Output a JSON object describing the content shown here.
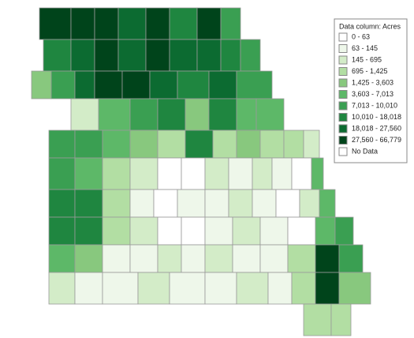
{
  "legend": {
    "title": "Data column: Acres",
    "items": [
      {
        "label": "0 - 63",
        "color": "#ffffff"
      },
      {
        "label": "63 - 145",
        "color": "#eef7ea"
      },
      {
        "label": "145 - 695",
        "color": "#d3ecc8"
      },
      {
        "label": "695 - 1,425",
        "color": "#b2dea3"
      },
      {
        "label": "1,425 - 3,603",
        "color": "#88c87e"
      },
      {
        "label": "3,603 - 7,013",
        "color": "#5db868"
      },
      {
        "label": "7,013 - 10,010",
        "color": "#3a9f52"
      },
      {
        "label": "10,010 - 18,018",
        "color": "#1f8640"
      },
      {
        "label": "18,018 - 27,560",
        "color": "#0c6b31"
      },
      {
        "label": "27,560 - 66,779",
        "color": "#00441b"
      },
      {
        "label": "No Data",
        "color": "#ffffff"
      }
    ]
  },
  "counties": [
    9,
    9,
    9,
    8,
    9,
    7,
    9,
    6,
    7,
    8,
    9,
    8,
    9,
    8,
    8,
    7,
    6,
    4,
    6,
    8,
    9,
    9,
    8,
    7,
    8,
    6,
    2,
    5,
    6,
    7,
    4,
    7,
    5,
    5,
    6,
    6,
    5,
    4,
    3,
    7,
    3,
    4,
    3,
    3,
    2,
    6,
    5,
    3,
    2,
    0,
    0,
    2,
    1,
    2,
    1,
    0,
    5,
    7,
    7,
    3,
    1,
    0,
    1,
    1,
    2,
    1,
    0,
    2,
    5,
    7,
    7,
    3,
    2,
    0,
    0,
    1,
    2,
    1,
    0,
    5,
    6,
    5,
    4,
    1,
    1,
    2,
    1,
    2,
    1,
    1,
    3,
    9,
    6,
    2,
    1,
    1,
    2,
    1,
    1,
    2,
    1,
    3,
    9,
    4,
    3,
    3
  ]
}
